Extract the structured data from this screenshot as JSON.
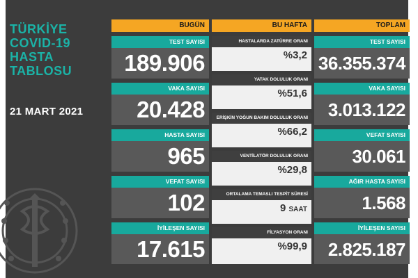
{
  "title_lines": [
    "TÜRKİYE",
    "COVID-19",
    "HASTA",
    "TABLOSU"
  ],
  "date": "21 MART 2021",
  "headers": {
    "today": "BUGÜN",
    "week": "BU HAFTA",
    "total": "TOPLAM"
  },
  "today": [
    {
      "label": "TEST SAYISI",
      "value": "189.906"
    },
    {
      "label": "VAKA SAYISI",
      "value": "20.428"
    },
    {
      "label": "HASTA SAYISI",
      "value": "965"
    },
    {
      "label": "VEFAT SAYISI",
      "value": "102"
    },
    {
      "label": "İYİLEŞEN SAYISI",
      "value": "17.615"
    }
  ],
  "week": [
    {
      "label": "HASTALARDA ZATÜRRE ORANI",
      "value": "%3,2"
    },
    {
      "label": "YATAK DOLULUK ORANI",
      "value": "%51,6"
    },
    {
      "label": "ERİŞKİN YOĞUN BAKIM DOLULUK ORANI",
      "value": "%66,2"
    },
    {
      "label": "VENTİLATÖR DOLULUK ORANI",
      "value": "%29,8"
    },
    {
      "label": "ORTALAMA TEMASLI TESPİT SÜRESİ",
      "value": "9",
      "unit": "SAAT"
    },
    {
      "label": "FİLYASYON ORANI",
      "value": "%99,9"
    }
  ],
  "total": [
    {
      "label": "TEST SAYISI",
      "value": "36.355.374"
    },
    {
      "label": "VAKA SAYISI",
      "value": "3.013.122"
    },
    {
      "label": "VEFAT SAYISI",
      "value": "30.061"
    },
    {
      "label": "AĞIR HASTA SAYISI",
      "value": "1.568"
    },
    {
      "label": "İYİLEŞEN SAYISI",
      "value": "2.825.187"
    }
  ],
  "colors": {
    "accent_orange": "#f5a623",
    "accent_teal": "#18a99d",
    "title_teal": "#1bb3a7",
    "panel_gray": "#595959",
    "background": "#3c3c3c"
  },
  "icons": {
    "emblem": "ministry-of-health-emblem-icon"
  }
}
